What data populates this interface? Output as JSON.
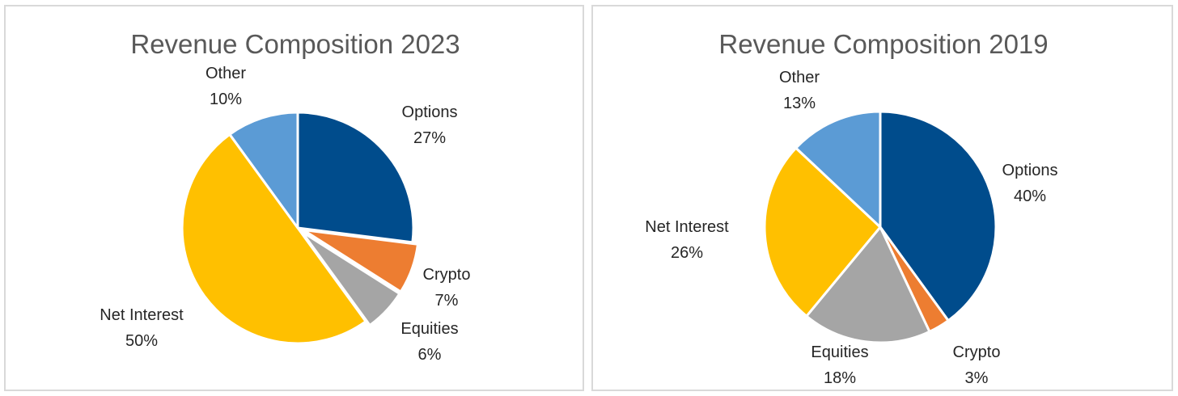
{
  "chart_data": [
    {
      "type": "pie",
      "title": "Revenue Composition 2023",
      "slices": [
        {
          "label": "Options",
          "value": 27,
          "value_label": "27%",
          "color": "#004C8C"
        },
        {
          "label": "Crypto",
          "value": 7,
          "value_label": "7%",
          "color": "#ED7D31"
        },
        {
          "label": "Equities",
          "value": 6,
          "value_label": "6%",
          "color": "#A5A5A5"
        },
        {
          "label": "Net Interest",
          "value": 50,
          "value_label": "50%",
          "color": "#FFC000"
        },
        {
          "label": "Other",
          "value": 10,
          "value_label": "10%",
          "color": "#5B9BD5"
        }
      ],
      "start": "12 o'clock",
      "direction": "clockwise",
      "legend": "none"
    },
    {
      "type": "pie",
      "title": "Revenue Composition 2019",
      "slices": [
        {
          "label": "Options",
          "value": 40,
          "value_label": "40%",
          "color": "#004C8C"
        },
        {
          "label": "Crypto",
          "value": 3,
          "value_label": "3%",
          "color": "#ED7D31"
        },
        {
          "label": "Equities",
          "value": 18,
          "value_label": "18%",
          "color": "#A5A5A5"
        },
        {
          "label": "Net Interest",
          "value": 26,
          "value_label": "26%",
          "color": "#FFC000"
        },
        {
          "label": "Other",
          "value": 13,
          "value_label": "13%",
          "color": "#5B9BD5"
        }
      ],
      "start": "12 o'clock",
      "direction": "clockwise",
      "legend": "none"
    }
  ]
}
